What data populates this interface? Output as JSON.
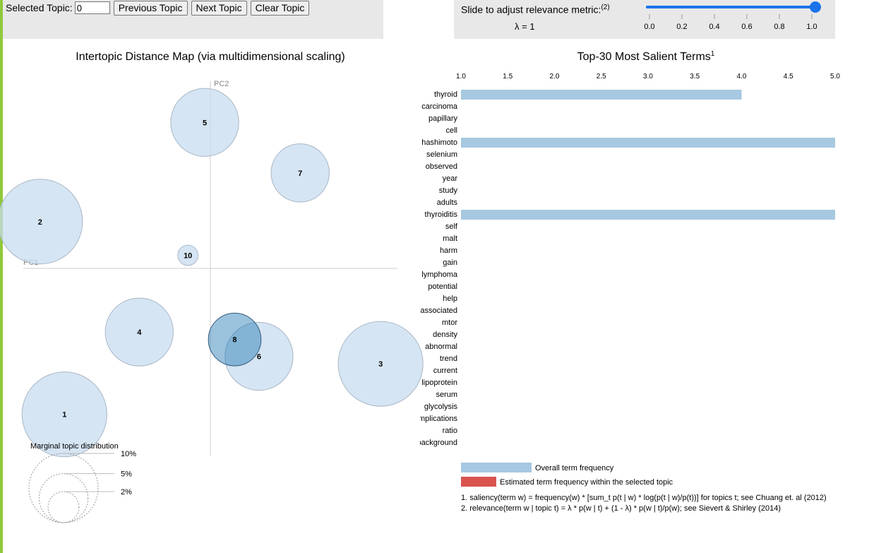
{
  "controls": {
    "selected_topic_label": "Selected Topic:",
    "selected_topic_value": "0",
    "prev_label": "Previous Topic",
    "next_label": "Next Topic",
    "clear_label": "Clear Topic"
  },
  "slider": {
    "label": "Slide to adjust relevance metric:",
    "label_note": "(2)",
    "lambda_text": "λ = 1",
    "min": 0,
    "max": 1,
    "value": 1,
    "ticks": [
      "0.0",
      "0.2",
      "0.4",
      "0.6",
      "0.8",
      "1.0"
    ]
  },
  "colors": {
    "bubble": "#c6dbef",
    "bubble_selected": "#1f77b4",
    "overall_bar": "#a6c8e0",
    "topic_bar": "#d9534f",
    "slider": "#1a73e8",
    "accent": "#8fc93a"
  },
  "chart_data": [
    {
      "type": "scatter",
      "title": "Intertopic Distance Map (via multidimensional scaling)",
      "xlabel": "PC1",
      "ylabel": "PC2",
      "xlim": [
        -1,
        1
      ],
      "ylim": [
        -1,
        1
      ],
      "topics": [
        {
          "label": "1",
          "x": -0.78,
          "y": -0.78,
          "size": 7
        },
        {
          "label": "2",
          "x": -0.91,
          "y": 0.25,
          "size": 7
        },
        {
          "label": "3",
          "x": 0.91,
          "y": -0.51,
          "size": 7
        },
        {
          "label": "4",
          "x": -0.38,
          "y": -0.34,
          "size": 4.5
        },
        {
          "label": "5",
          "x": -0.03,
          "y": 0.78,
          "size": 4.5
        },
        {
          "label": "6",
          "x": 0.26,
          "y": -0.47,
          "size": 4.5
        },
        {
          "label": "7",
          "x": 0.48,
          "y": 0.51,
          "size": 3.3
        },
        {
          "label": "8",
          "x": 0.13,
          "y": -0.38,
          "size": 2.7,
          "selected": true
        },
        {
          "label": "10",
          "x": -0.12,
          "y": 0.07,
          "size": 0.4
        }
      ],
      "marginal": {
        "title": "Marginal topic distribution",
        "levels": [
          {
            "label": "2%",
            "value": 2
          },
          {
            "label": "5%",
            "value": 5
          },
          {
            "label": "10%",
            "value": 10
          }
        ]
      }
    },
    {
      "type": "bar",
      "orientation": "horizontal",
      "title": "Top-30 Most Salient Terms",
      "title_note": "1",
      "xlim": [
        1.0,
        5.0
      ],
      "xticks": [
        "1.0",
        "1.5",
        "2.0",
        "2.5",
        "3.0",
        "3.5",
        "4.0",
        "4.5",
        "5.0"
      ],
      "terms": [
        "thyroid",
        "carcinoma",
        "papillary",
        "cell",
        "hashimoto",
        "selenium",
        "observed",
        "year",
        "study",
        "adults",
        "thyroiditis",
        "self",
        "malt",
        "harm",
        "gain",
        "lymphoma",
        "potential",
        "help",
        "associated",
        "mtor",
        "density",
        "abnormal",
        "trend",
        "current",
        "lipoprotein",
        "serum",
        "glycolysis",
        "implications",
        "ratio",
        "background"
      ],
      "values": [
        4,
        1,
        1,
        1,
        5,
        1,
        1,
        1,
        1,
        1,
        5,
        1,
        1,
        1,
        1,
        1,
        1,
        1,
        1,
        1,
        1,
        1,
        1,
        1,
        1,
        1,
        1,
        1,
        1,
        1
      ],
      "legend": {
        "overall": "Overall term frequency",
        "topic": "Estimated term frequency within the selected topic"
      },
      "footnotes": [
        "1. saliency(term w) = frequency(w) * [sum_t p(t | w) * log(p(t | w)/p(t))] for topics t; see Chuang et. al (2012)",
        "2. relevance(term w | topic t) = λ * p(w | t) + (1 - λ) * p(w | t)/p(w); see Sievert & Shirley (2014)"
      ]
    }
  ]
}
